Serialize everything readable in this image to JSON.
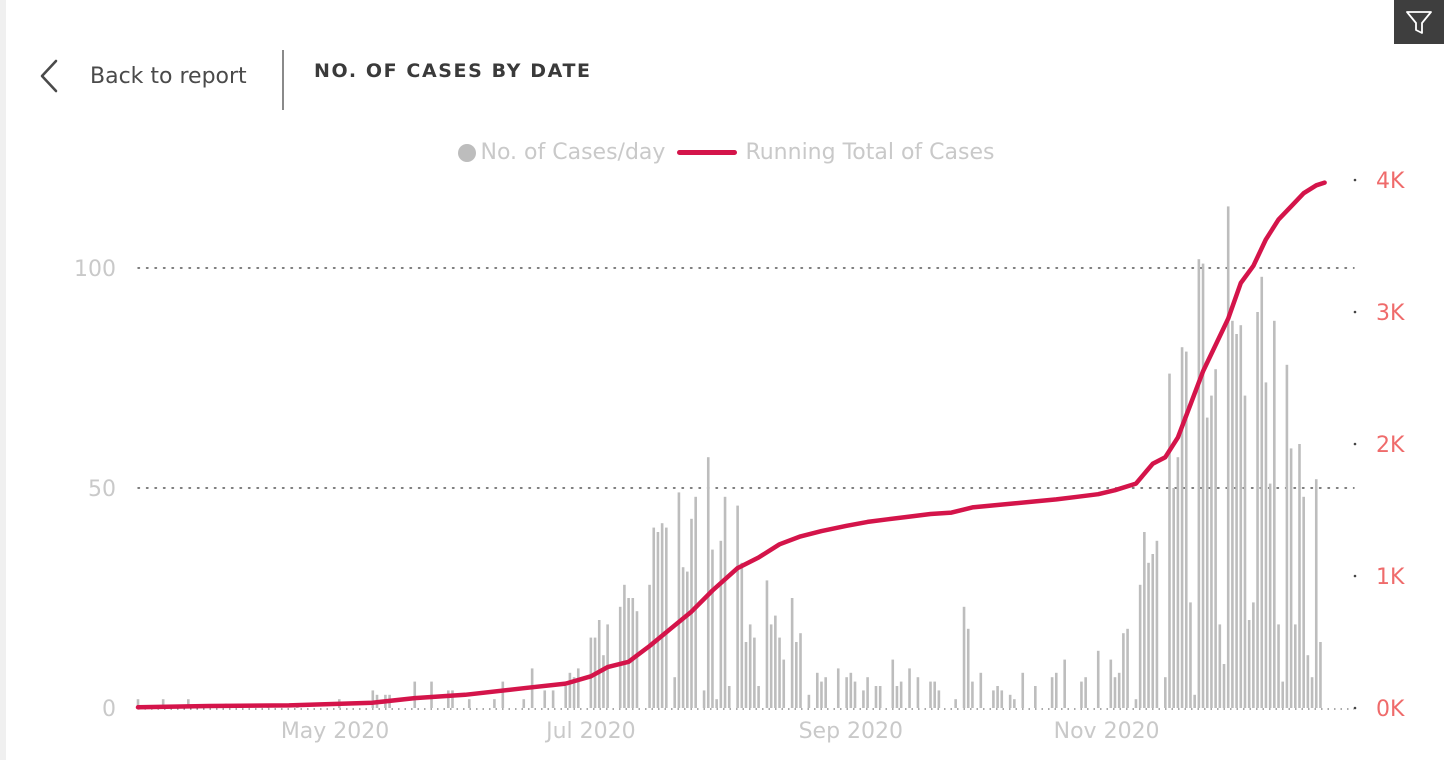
{
  "header": {
    "back_label": "Back to report",
    "title": "NO. OF CASES BY DATE"
  },
  "icons": {
    "back": "chevron-left-icon",
    "filter": "filter-icon"
  },
  "colors": {
    "bars": "#bdbdbd",
    "line": "#d4144a",
    "left_axis_text": "#c9c9c9",
    "right_axis_text": "#ef6b6b",
    "x_axis_text": "#c9c9c9",
    "legend_text": "#c9c9c9",
    "filter_bg": "#3e3e3e"
  },
  "chart_data": {
    "type": "bar+line",
    "legend": {
      "position": "top-center",
      "items": [
        {
          "label": "No. of Cases/day",
          "marker": "dot"
        },
        {
          "label": "Running Total of Cases",
          "marker": "line"
        }
      ]
    },
    "x_axis": {
      "type": "date",
      "range": [
        "2020-03-15",
        "2020-12-30"
      ],
      "ticks": [
        {
          "date": "2020-05-01",
          "label": "May 2020"
        },
        {
          "date": "2020-07-01",
          "label": "Jul 2020"
        },
        {
          "date": "2020-09-01",
          "label": "Sep 2020"
        },
        {
          "date": "2020-11-01",
          "label": "Nov 2020"
        }
      ]
    },
    "y_left": {
      "ylim": [
        0,
        120
      ],
      "ticks": [
        {
          "v": 0,
          "label": "0"
        },
        {
          "v": 50,
          "label": "50"
        },
        {
          "v": 100,
          "label": "100"
        }
      ],
      "grid": "dotted"
    },
    "y_right": {
      "ylim": [
        0,
        4000
      ],
      "ticks": [
        {
          "v": 0,
          "label": "0K"
        },
        {
          "v": 1000,
          "label": "1K"
        },
        {
          "v": 2000,
          "label": "2K"
        },
        {
          "v": 3000,
          "label": "3K"
        },
        {
          "v": 4000,
          "label": "4K"
        }
      ]
    },
    "series": [
      {
        "name": "No. of Cases/day",
        "type": "bar",
        "axis": "left",
        "points": [
          {
            "x": "2020-03-15",
            "y": 2
          },
          {
            "x": "2020-03-21",
            "y": 2
          },
          {
            "x": "2020-03-27",
            "y": 2
          },
          {
            "x": "2020-04-05",
            "y": 1
          },
          {
            "x": "2020-04-15",
            "y": 1
          },
          {
            "x": "2020-04-22",
            "y": 1
          },
          {
            "x": "2020-05-02",
            "y": 2
          },
          {
            "x": "2020-05-10",
            "y": 4
          },
          {
            "x": "2020-05-11",
            "y": 3
          },
          {
            "x": "2020-05-13",
            "y": 3
          },
          {
            "x": "2020-05-14",
            "y": 3
          },
          {
            "x": "2020-05-20",
            "y": 6
          },
          {
            "x": "2020-05-24",
            "y": 6
          },
          {
            "x": "2020-05-28",
            "y": 4
          },
          {
            "x": "2020-05-29",
            "y": 4
          },
          {
            "x": "2020-06-02",
            "y": 2
          },
          {
            "x": "2020-06-08",
            "y": 2
          },
          {
            "x": "2020-06-10",
            "y": 6
          },
          {
            "x": "2020-06-15",
            "y": 2
          },
          {
            "x": "2020-06-17",
            "y": 9
          },
          {
            "x": "2020-06-20",
            "y": 4
          },
          {
            "x": "2020-06-22",
            "y": 4
          },
          {
            "x": "2020-06-25",
            "y": 5
          },
          {
            "x": "2020-06-26",
            "y": 8
          },
          {
            "x": "2020-06-27",
            "y": 7
          },
          {
            "x": "2020-06-28",
            "y": 9
          },
          {
            "x": "2020-07-01",
            "y": 16
          },
          {
            "x": "2020-07-02",
            "y": 16
          },
          {
            "x": "2020-07-03",
            "y": 20
          },
          {
            "x": "2020-07-04",
            "y": 12
          },
          {
            "x": "2020-07-05",
            "y": 19
          },
          {
            "x": "2020-07-08",
            "y": 23
          },
          {
            "x": "2020-07-09",
            "y": 28
          },
          {
            "x": "2020-07-10",
            "y": 25
          },
          {
            "x": "2020-07-11",
            "y": 25
          },
          {
            "x": "2020-07-12",
            "y": 22
          },
          {
            "x": "2020-07-15",
            "y": 28
          },
          {
            "x": "2020-07-16",
            "y": 41
          },
          {
            "x": "2020-07-17",
            "y": 40
          },
          {
            "x": "2020-07-18",
            "y": 42
          },
          {
            "x": "2020-07-19",
            "y": 41
          },
          {
            "x": "2020-07-21",
            "y": 7
          },
          {
            "x": "2020-07-22",
            "y": 49
          },
          {
            "x": "2020-07-23",
            "y": 32
          },
          {
            "x": "2020-07-24",
            "y": 31
          },
          {
            "x": "2020-07-25",
            "y": 43
          },
          {
            "x": "2020-07-26",
            "y": 48
          },
          {
            "x": "2020-07-28",
            "y": 4
          },
          {
            "x": "2020-07-29",
            "y": 57
          },
          {
            "x": "2020-07-30",
            "y": 36
          },
          {
            "x": "2020-07-31",
            "y": 2
          },
          {
            "x": "2020-08-01",
            "y": 38
          },
          {
            "x": "2020-08-02",
            "y": 48
          },
          {
            "x": "2020-08-03",
            "y": 5
          },
          {
            "x": "2020-08-05",
            "y": 46
          },
          {
            "x": "2020-08-06",
            "y": 33
          },
          {
            "x": "2020-08-07",
            "y": 15
          },
          {
            "x": "2020-08-08",
            "y": 19
          },
          {
            "x": "2020-08-09",
            "y": 16
          },
          {
            "x": "2020-08-10",
            "y": 5
          },
          {
            "x": "2020-08-12",
            "y": 29
          },
          {
            "x": "2020-08-13",
            "y": 19
          },
          {
            "x": "2020-08-14",
            "y": 21
          },
          {
            "x": "2020-08-15",
            "y": 16
          },
          {
            "x": "2020-08-16",
            "y": 11
          },
          {
            "x": "2020-08-18",
            "y": 25
          },
          {
            "x": "2020-08-19",
            "y": 15
          },
          {
            "x": "2020-08-20",
            "y": 17
          },
          {
            "x": "2020-08-22",
            "y": 3
          },
          {
            "x": "2020-08-24",
            "y": 8
          },
          {
            "x": "2020-08-25",
            "y": 6
          },
          {
            "x": "2020-08-26",
            "y": 7
          },
          {
            "x": "2020-08-29",
            "y": 9
          },
          {
            "x": "2020-08-31",
            "y": 7
          },
          {
            "x": "2020-09-01",
            "y": 8
          },
          {
            "x": "2020-09-02",
            "y": 6
          },
          {
            "x": "2020-09-04",
            "y": 4
          },
          {
            "x": "2020-09-05",
            "y": 7
          },
          {
            "x": "2020-09-07",
            "y": 5
          },
          {
            "x": "2020-09-08",
            "y": 5
          },
          {
            "x": "2020-09-11",
            "y": 11
          },
          {
            "x": "2020-09-12",
            "y": 5
          },
          {
            "x": "2020-09-13",
            "y": 6
          },
          {
            "x": "2020-09-15",
            "y": 9
          },
          {
            "x": "2020-09-17",
            "y": 7
          },
          {
            "x": "2020-09-20",
            "y": 6
          },
          {
            "x": "2020-09-21",
            "y": 6
          },
          {
            "x": "2020-09-22",
            "y": 4
          },
          {
            "x": "2020-09-26",
            "y": 2
          },
          {
            "x": "2020-09-28",
            "y": 23
          },
          {
            "x": "2020-09-29",
            "y": 18
          },
          {
            "x": "2020-09-30",
            "y": 6
          },
          {
            "x": "2020-10-02",
            "y": 8
          },
          {
            "x": "2020-10-05",
            "y": 4
          },
          {
            "x": "2020-10-06",
            "y": 5
          },
          {
            "x": "2020-10-07",
            "y": 4
          },
          {
            "x": "2020-10-09",
            "y": 3
          },
          {
            "x": "2020-10-10",
            "y": 2
          },
          {
            "x": "2020-10-12",
            "y": 8
          },
          {
            "x": "2020-10-15",
            "y": 5
          },
          {
            "x": "2020-10-19",
            "y": 7
          },
          {
            "x": "2020-10-20",
            "y": 8
          },
          {
            "x": "2020-10-22",
            "y": 11
          },
          {
            "x": "2020-10-26",
            "y": 6
          },
          {
            "x": "2020-10-27",
            "y": 7
          },
          {
            "x": "2020-10-30",
            "y": 13
          },
          {
            "x": "2020-11-02",
            "y": 11
          },
          {
            "x": "2020-11-03",
            "y": 7
          },
          {
            "x": "2020-11-04",
            "y": 8
          },
          {
            "x": "2020-11-05",
            "y": 17
          },
          {
            "x": "2020-11-06",
            "y": 18
          },
          {
            "x": "2020-11-08",
            "y": 2
          },
          {
            "x": "2020-11-09",
            "y": 28
          },
          {
            "x": "2020-11-10",
            "y": 40
          },
          {
            "x": "2020-11-11",
            "y": 33
          },
          {
            "x": "2020-11-12",
            "y": 35
          },
          {
            "x": "2020-11-13",
            "y": 38
          },
          {
            "x": "2020-11-15",
            "y": 7
          },
          {
            "x": "2020-11-16",
            "y": 76
          },
          {
            "x": "2020-11-17",
            "y": 50
          },
          {
            "x": "2020-11-18",
            "y": 57
          },
          {
            "x": "2020-11-19",
            "y": 82
          },
          {
            "x": "2020-11-20",
            "y": 81
          },
          {
            "x": "2020-11-21",
            "y": 24
          },
          {
            "x": "2020-11-22",
            "y": 3
          },
          {
            "x": "2020-11-23",
            "y": 102
          },
          {
            "x": "2020-11-24",
            "y": 101
          },
          {
            "x": "2020-11-25",
            "y": 66
          },
          {
            "x": "2020-11-26",
            "y": 71
          },
          {
            "x": "2020-11-27",
            "y": 77
          },
          {
            "x": "2020-11-28",
            "y": 19
          },
          {
            "x": "2020-11-29",
            "y": 10
          },
          {
            "x": "2020-11-30",
            "y": 114
          },
          {
            "x": "2020-12-01",
            "y": 88
          },
          {
            "x": "2020-12-02",
            "y": 85
          },
          {
            "x": "2020-12-03",
            "y": 87
          },
          {
            "x": "2020-12-04",
            "y": 71
          },
          {
            "x": "2020-12-05",
            "y": 20
          },
          {
            "x": "2020-12-06",
            "y": 24
          },
          {
            "x": "2020-12-07",
            "y": 90
          },
          {
            "x": "2020-12-08",
            "y": 98
          },
          {
            "x": "2020-12-09",
            "y": 74
          },
          {
            "x": "2020-12-10",
            "y": 51
          },
          {
            "x": "2020-12-11",
            "y": 88
          },
          {
            "x": "2020-12-12",
            "y": 19
          },
          {
            "x": "2020-12-13",
            "y": 6
          },
          {
            "x": "2020-12-14",
            "y": 78
          },
          {
            "x": "2020-12-15",
            "y": 59
          },
          {
            "x": "2020-12-16",
            "y": 19
          },
          {
            "x": "2020-12-17",
            "y": 60
          },
          {
            "x": "2020-12-18",
            "y": 48
          },
          {
            "x": "2020-12-19",
            "y": 12
          },
          {
            "x": "2020-12-20",
            "y": 7
          },
          {
            "x": "2020-12-21",
            "y": 52
          },
          {
            "x": "2020-12-22",
            "y": 15
          }
        ]
      },
      {
        "name": "Running Total of Cases",
        "type": "line",
        "axis": "right",
        "points": [
          {
            "x": "2020-03-15",
            "y": 5
          },
          {
            "x": "2020-04-01",
            "y": 15
          },
          {
            "x": "2020-04-20",
            "y": 20
          },
          {
            "x": "2020-05-10",
            "y": 40
          },
          {
            "x": "2020-05-20",
            "y": 75
          },
          {
            "x": "2020-06-01",
            "y": 100
          },
          {
            "x": "2020-06-15",
            "y": 150
          },
          {
            "x": "2020-06-25",
            "y": 185
          },
          {
            "x": "2020-07-01",
            "y": 240
          },
          {
            "x": "2020-07-05",
            "y": 310
          },
          {
            "x": "2020-07-10",
            "y": 350
          },
          {
            "x": "2020-07-15",
            "y": 470
          },
          {
            "x": "2020-07-20",
            "y": 600
          },
          {
            "x": "2020-07-25",
            "y": 730
          },
          {
            "x": "2020-07-30",
            "y": 890
          },
          {
            "x": "2020-08-05",
            "y": 1060
          },
          {
            "x": "2020-08-10",
            "y": 1140
          },
          {
            "x": "2020-08-15",
            "y": 1240
          },
          {
            "x": "2020-08-20",
            "y": 1300
          },
          {
            "x": "2020-08-25",
            "y": 1340
          },
          {
            "x": "2020-08-31",
            "y": 1380
          },
          {
            "x": "2020-09-05",
            "y": 1410
          },
          {
            "x": "2020-09-10",
            "y": 1430
          },
          {
            "x": "2020-09-15",
            "y": 1450
          },
          {
            "x": "2020-09-20",
            "y": 1470
          },
          {
            "x": "2020-09-25",
            "y": 1480
          },
          {
            "x": "2020-09-30",
            "y": 1520
          },
          {
            "x": "2020-10-05",
            "y": 1535
          },
          {
            "x": "2020-10-10",
            "y": 1550
          },
          {
            "x": "2020-10-15",
            "y": 1565
          },
          {
            "x": "2020-10-20",
            "y": 1580
          },
          {
            "x": "2020-10-25",
            "y": 1600
          },
          {
            "x": "2020-10-30",
            "y": 1620
          },
          {
            "x": "2020-11-03",
            "y": 1650
          },
          {
            "x": "2020-11-08",
            "y": 1700
          },
          {
            "x": "2020-11-12",
            "y": 1850
          },
          {
            "x": "2020-11-15",
            "y": 1900
          },
          {
            "x": "2020-11-18",
            "y": 2050
          },
          {
            "x": "2020-11-21",
            "y": 2300
          },
          {
            "x": "2020-11-24",
            "y": 2550
          },
          {
            "x": "2020-11-27",
            "y": 2750
          },
          {
            "x": "2020-11-30",
            "y": 2950
          },
          {
            "x": "2020-12-03",
            "y": 3220
          },
          {
            "x": "2020-12-06",
            "y": 3350
          },
          {
            "x": "2020-12-09",
            "y": 3550
          },
          {
            "x": "2020-12-12",
            "y": 3700
          },
          {
            "x": "2020-12-15",
            "y": 3800
          },
          {
            "x": "2020-12-18",
            "y": 3900
          },
          {
            "x": "2020-12-21",
            "y": 3960
          },
          {
            "x": "2020-12-23",
            "y": 3980
          }
        ]
      }
    ]
  }
}
